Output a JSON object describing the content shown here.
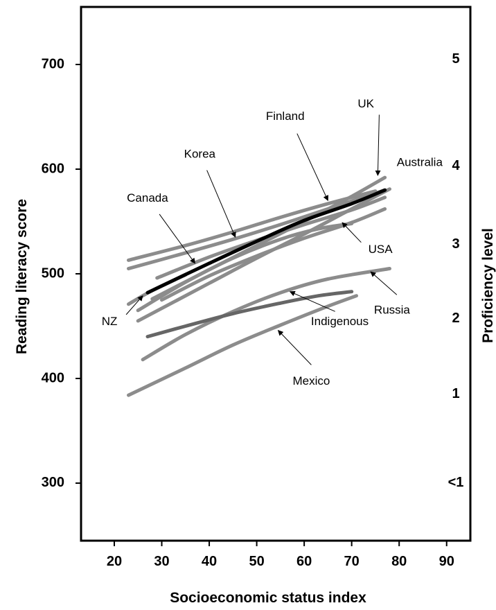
{
  "chart_data": {
    "type": "line",
    "xlabel": "Socioeconomic status index",
    "ylabel": "Reading literacy score",
    "y2label": "Proficiency level",
    "xlim": [
      13,
      95
    ],
    "ylim": [
      245,
      755
    ],
    "x_ticks": [
      20,
      30,
      40,
      50,
      60,
      70,
      80,
      90
    ],
    "y_ticks": [
      300,
      400,
      500,
      600,
      700
    ],
    "y2_ticks": [
      {
        "score": 705,
        "label": "5"
      },
      {
        "score": 603,
        "label": "4"
      },
      {
        "score": 528,
        "label": "3"
      },
      {
        "score": 457,
        "label": "2"
      },
      {
        "score": 385,
        "label": "1"
      },
      {
        "score": 300,
        "label": "<1"
      }
    ],
    "grid": false,
    "series": [
      {
        "name": "UK",
        "color": "#8c8c8c",
        "width": 5,
        "points": [
          [
            28,
            476
          ],
          [
            40,
            504
          ],
          [
            50,
            527
          ],
          [
            60,
            550
          ],
          [
            70,
            574
          ],
          [
            77,
            592
          ]
        ]
      },
      {
        "name": "Australia",
        "color": "#8c8c8c",
        "width": 5,
        "points": [
          [
            25,
            455
          ],
          [
            40,
            491
          ],
          [
            50,
            515
          ],
          [
            60,
            538
          ],
          [
            70,
            562
          ],
          [
            78,
            581
          ]
        ]
      },
      {
        "name": "Finland",
        "color": "#8c8c8c",
        "width": 5,
        "points": [
          [
            23,
            513
          ],
          [
            35,
            527
          ],
          [
            45,
            540
          ],
          [
            55,
            554
          ],
          [
            65,
            567
          ],
          [
            75,
            579
          ]
        ]
      },
      {
        "name": "Korea",
        "color": "#8c8c8c",
        "width": 5,
        "points": [
          [
            23,
            505
          ],
          [
            35,
            520
          ],
          [
            45,
            533
          ],
          [
            55,
            547
          ],
          [
            65,
            562
          ],
          [
            77,
            580
          ]
        ]
      },
      {
        "name": "Canada",
        "color": "#8c8c8c",
        "width": 5,
        "points": [
          [
            29,
            496
          ],
          [
            40,
            516
          ],
          [
            50,
            532
          ],
          [
            60,
            547
          ],
          [
            70,
            561
          ],
          [
            77,
            573
          ]
        ]
      },
      {
        "name": "USA",
        "color": "#8c8c8c",
        "width": 5,
        "points": [
          [
            25,
            465
          ],
          [
            35,
            492
          ],
          [
            45,
            515
          ],
          [
            55,
            533
          ],
          [
            63,
            543
          ],
          [
            70,
            548
          ]
        ]
      },
      {
        "name": "NZ",
        "color": "#8c8c8c",
        "width": 5,
        "points": [
          [
            30,
            475
          ],
          [
            40,
            498
          ],
          [
            50,
            517
          ],
          [
            60,
            534
          ],
          [
            70,
            549
          ],
          [
            77,
            562
          ]
        ]
      },
      {
        "name": "",
        "color": "#8c8c8c",
        "width": 5,
        "points": [
          [
            23,
            471
          ],
          [
            28,
            484
          ],
          [
            35,
            499
          ]
        ]
      },
      {
        "name": "",
        "color": "#000000",
        "width": 5,
        "points": [
          [
            27,
            482
          ],
          [
            40,
            510
          ],
          [
            50,
            531
          ],
          [
            60,
            551
          ],
          [
            70,
            567
          ],
          [
            77,
            580
          ]
        ]
      },
      {
        "name": "Russia",
        "color": "#8c8c8c",
        "width": 5,
        "points": [
          [
            26,
            418
          ],
          [
            35,
            442
          ],
          [
            45,
            464
          ],
          [
            55,
            482
          ],
          [
            65,
            495
          ],
          [
            78,
            505
          ]
        ]
      },
      {
        "name": "Indigenous",
        "color": "#666666",
        "width": 5,
        "points": [
          [
            27,
            440
          ],
          [
            35,
            450
          ],
          [
            45,
            462
          ],
          [
            55,
            472
          ],
          [
            63,
            479
          ],
          [
            70,
            483
          ]
        ]
      },
      {
        "name": "Mexico",
        "color": "#8c8c8c",
        "width": 5,
        "points": [
          [
            23,
            384
          ],
          [
            35,
            410
          ],
          [
            45,
            432
          ],
          [
            55,
            451
          ],
          [
            65,
            469
          ],
          [
            71,
            479
          ]
        ]
      }
    ],
    "annotations": [
      {
        "text": "UK",
        "x": 73,
        "y": 662,
        "anchor": "middle",
        "arrow": [
          [
            75.8,
            652
          ],
          [
            75.5,
            594
          ]
        ]
      },
      {
        "text": "Australia",
        "x": 79.5,
        "y": 606,
        "anchor": "start",
        "arrow": null
      },
      {
        "text": "Finland",
        "x": 56,
        "y": 650,
        "anchor": "middle",
        "arrow": [
          [
            58.5,
            634
          ],
          [
            65,
            570
          ]
        ]
      },
      {
        "text": "Korea",
        "x": 38,
        "y": 614,
        "anchor": "middle",
        "arrow": [
          [
            39.5,
            599
          ],
          [
            45.5,
            535
          ]
        ]
      },
      {
        "text": "Canada",
        "x": 27,
        "y": 572,
        "anchor": "middle",
        "arrow": [
          [
            29.5,
            557
          ],
          [
            37,
            510
          ]
        ]
      },
      {
        "text": "USA",
        "x": 73.5,
        "y": 523,
        "anchor": "start",
        "arrow": [
          [
            72,
            530
          ],
          [
            68,
            549
          ]
        ]
      },
      {
        "text": "Russia",
        "x": 78.5,
        "y": 465,
        "anchor": "middle",
        "arrow": [
          [
            79.5,
            480
          ],
          [
            74,
            502
          ]
        ]
      },
      {
        "text": "Indigenous",
        "x": 67.5,
        "y": 454,
        "anchor": "middle",
        "arrow": [
          [
            66.5,
            464
          ],
          [
            57,
            483
          ]
        ]
      },
      {
        "text": "Mexico",
        "x": 61.5,
        "y": 397,
        "anchor": "middle",
        "arrow": [
          [
            61.5,
            413
          ],
          [
            54.5,
            446
          ]
        ]
      },
      {
        "text": "NZ",
        "x": 19,
        "y": 454,
        "anchor": "middle",
        "arrow": [
          [
            22.5,
            461
          ],
          [
            26,
            479
          ]
        ]
      }
    ]
  }
}
